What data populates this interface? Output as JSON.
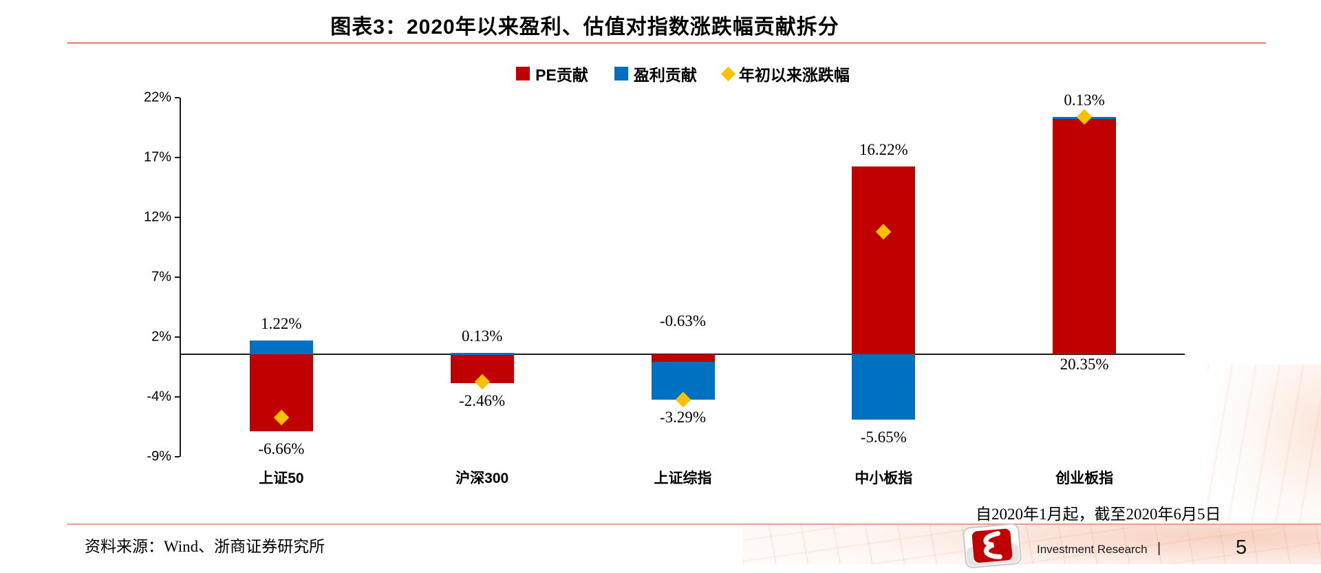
{
  "title": "图表3：2020年以来盈利、估值对指数涨跌幅贡献拆分",
  "legend": [
    {
      "label": "PE贡献",
      "color": "#C00000",
      "marker": "square"
    },
    {
      "label": "盈利贡献",
      "color": "#0070C0",
      "marker": "square"
    },
    {
      "label": "年初以来涨跌幅",
      "color": "#FFC000",
      "marker": "diamond"
    }
  ],
  "chart_data": {
    "type": "bar",
    "stacked": true,
    "categories": [
      "上证50",
      "沪深300",
      "上证综指",
      "中小板指",
      "创业板指"
    ],
    "series": [
      {
        "name": "PE贡献",
        "color": "#C00000",
        "values": [
          -6.66,
          -2.46,
          -0.63,
          16.22,
          20.35
        ]
      },
      {
        "name": "盈利贡献",
        "color": "#0070C0",
        "values": [
          1.22,
          0.13,
          -3.29,
          -5.65,
          0.13
        ]
      }
    ],
    "marker_series": {
      "name": "年初以来涨跌幅",
      "color": "#FFC000",
      "note": "sum of PE贡献 and 盈利贡献",
      "values": [
        -5.44,
        -2.33,
        -3.92,
        10.57,
        20.48
      ]
    },
    "labels_top": [
      "1.22%",
      "0.13%",
      "-0.63%",
      "16.22%",
      "0.13%"
    ],
    "labels_bottom": [
      "-6.66%",
      "-2.46%",
      "-3.29%",
      "-5.65%",
      "20.35%"
    ],
    "y_tick_labels": [
      "22%",
      "17%",
      "12%",
      "7%",
      "2%",
      "-4%",
      "-9%"
    ],
    "ylim": [
      -8.83,
      22.17
    ],
    "grid": false,
    "legend_position": "top"
  },
  "footnote": "自2020年1月起，截至2020年6月5日",
  "source": "资料来源：Wind、浙商证券研究所",
  "footer": {
    "brand": "Investment Research",
    "separator": "|",
    "page": "5"
  }
}
